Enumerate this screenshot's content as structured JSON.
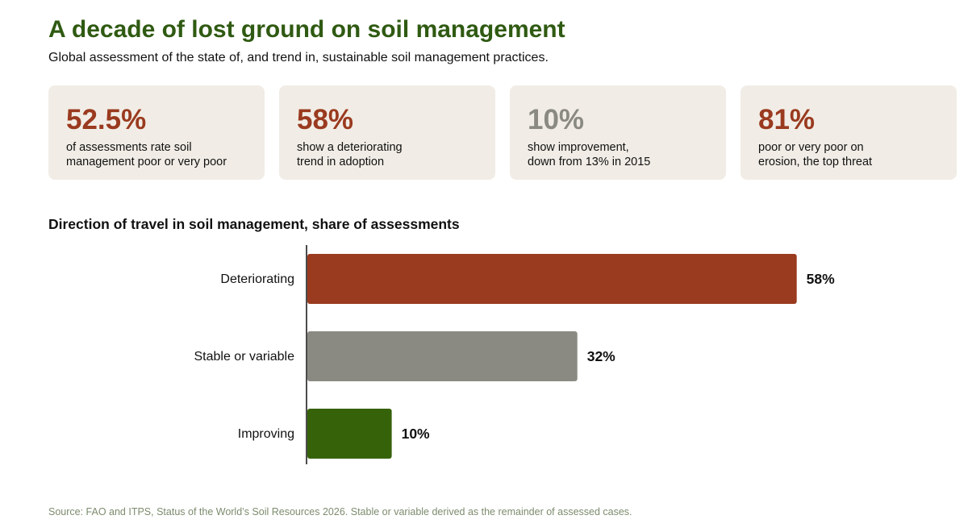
{
  "header": {
    "title": "A decade of lost ground on soil management",
    "subtitle": "Global assessment of the state of, and trend in, sustainable soil management practices."
  },
  "stat_cards": [
    {
      "value": "52.5%",
      "description": "of assessments rate soil\nmanagement poor or very poor",
      "color": "#9a3a1f"
    },
    {
      "value": "58%",
      "description": "show a deteriorating\ntrend in adoption",
      "color": "#9a3a1f"
    },
    {
      "value": "10%",
      "description": "show improvement,\ndown from 13% in 2015",
      "color": "#8a8a82"
    },
    {
      "value": "81%",
      "description": "poor or very poor on\nerosion, the top threat",
      "color": "#9a3a1f"
    }
  ],
  "chart_data": {
    "type": "bar",
    "orientation": "horizontal",
    "title": "Direction of travel in soil management, share of assessments",
    "categories": [
      "Deteriorating",
      "Stable or variable",
      "Improving"
    ],
    "values": [
      58,
      32,
      10
    ],
    "value_labels": [
      "58%",
      "32%",
      "10%"
    ],
    "colors": [
      "#9a3a1f",
      "#8a8a82",
      "#36620a"
    ],
    "xlim": [
      0,
      100
    ],
    "grid": false,
    "legend": "none"
  },
  "footer": {
    "source": "Source: FAO and ITPS, Status of the World’s Soil Resources 2026. Stable or variable derived as the remainder of assessed cases."
  }
}
